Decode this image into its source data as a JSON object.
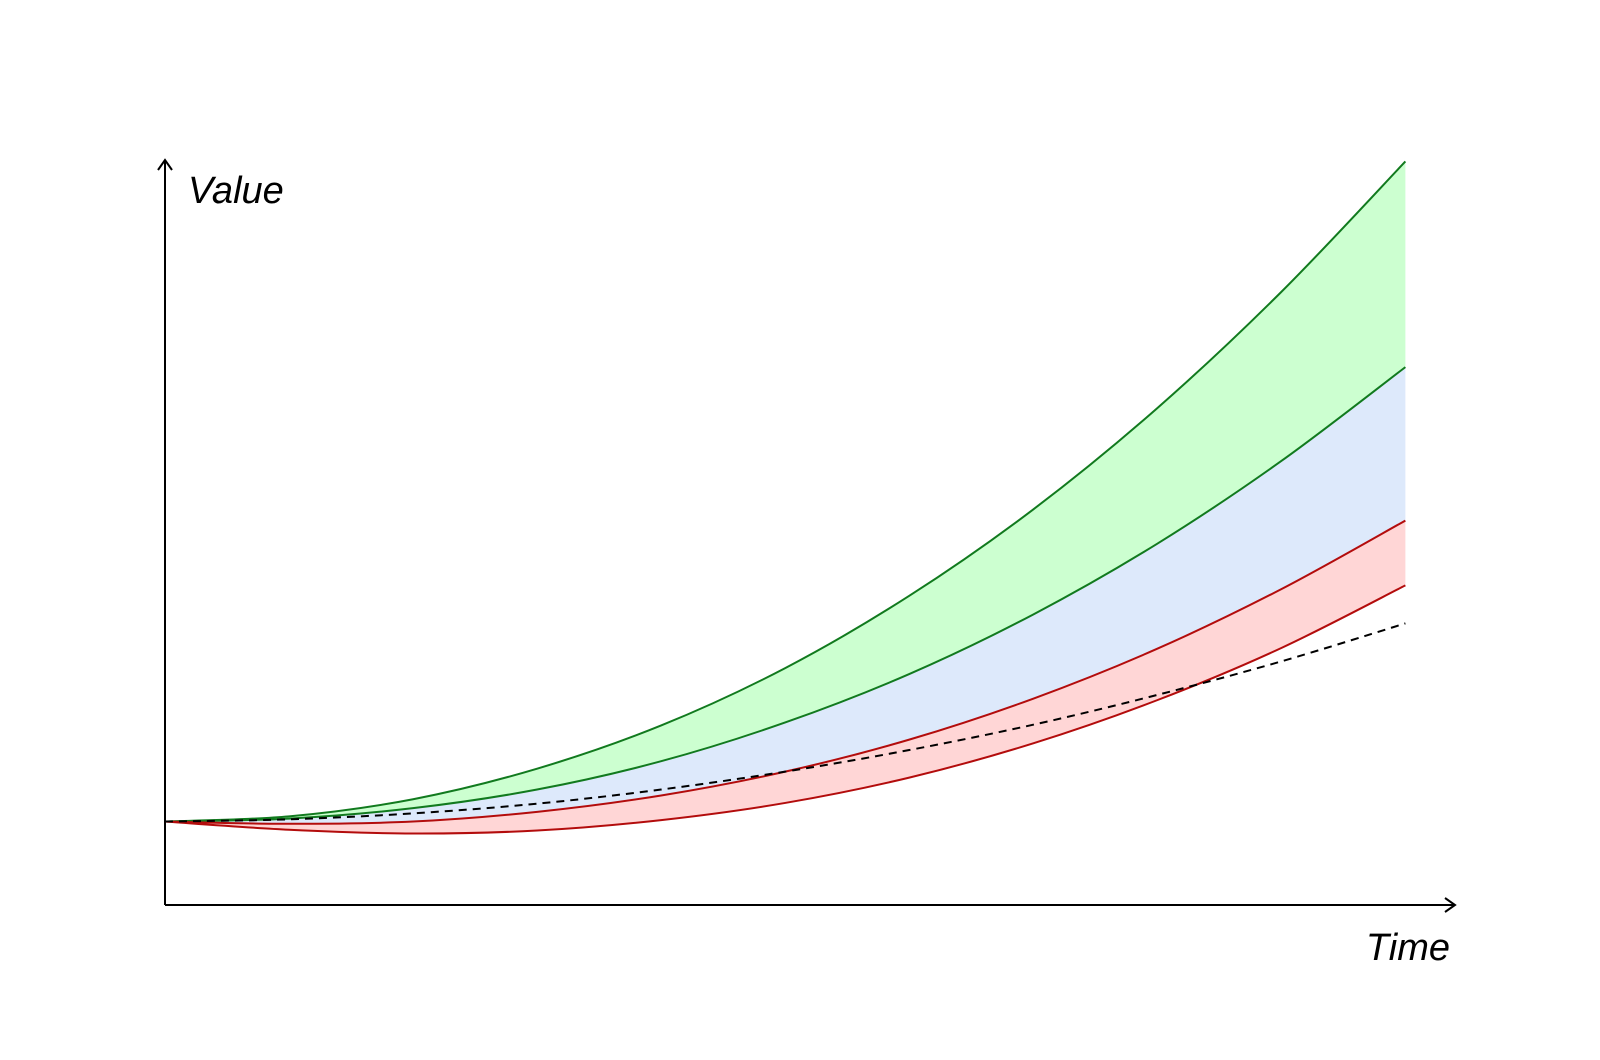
{
  "chart_data": {
    "type": "line",
    "xlabel": "Time",
    "ylabel": "Value",
    "x": [
      0,
      10,
      20,
      30,
      40,
      50,
      60,
      70,
      80,
      90,
      100
    ],
    "xlim": [
      0,
      104
    ],
    "ylim": [
      0,
      100
    ],
    "series": [
      {
        "color": "#117a1e",
        "values": [
          11.2,
          11.9,
          14.2,
          18.3,
          24.1,
          31.8,
          41.5,
          53.1,
          66.7,
          82.3,
          99.8
        ]
      },
      {
        "color": "#117a1e",
        "values": [
          11.2,
          11.6,
          13.0,
          15.5,
          19.3,
          24.5,
          31.0,
          39.0,
          48.5,
          59.6,
          72.2
        ]
      },
      {
        "color": "#b30c0c",
        "values": [
          11.2,
          10.9,
          11.2,
          12.5,
          14.7,
          17.9,
          22.2,
          27.7,
          34.4,
          42.4,
          51.6
        ]
      },
      {
        "color": "#b30c0c",
        "values": [
          11.2,
          10.1,
          9.6,
          10.0,
          11.4,
          13.7,
          17.1,
          21.7,
          27.5,
          34.5,
          42.9
        ]
      },
      {
        "color": "#000000",
        "dash": true,
        "values": [
          11.2,
          11.5,
          12.3,
          13.6,
          15.5,
          17.9,
          20.8,
          24.2,
          28.2,
          32.7,
          37.8
        ]
      }
    ],
    "band_colors": [
      "#ccffd0",
      "#dde9fb",
      "#ffd6d6"
    ]
  }
}
